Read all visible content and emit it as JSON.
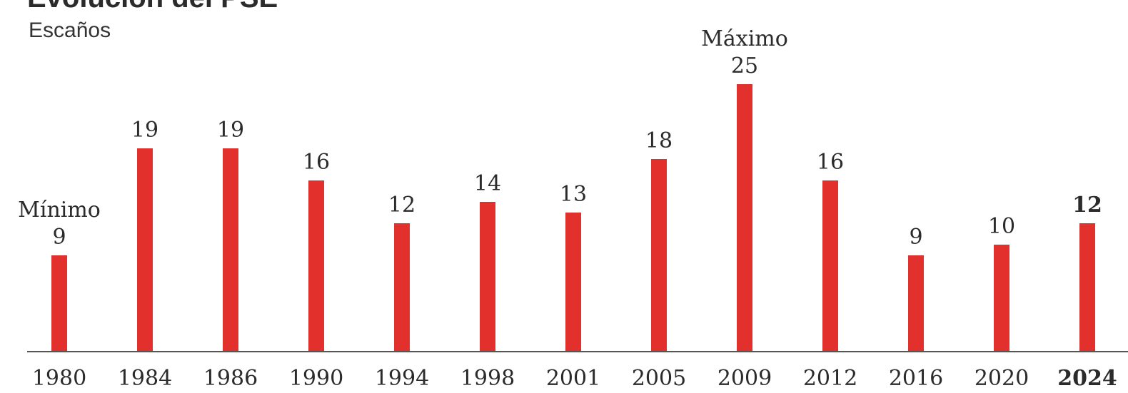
{
  "chart_data": {
    "type": "bar",
    "title": "Evolución del PSE",
    "ylabel": "Escaños",
    "xlabel": "",
    "categories": [
      "1980",
      "1984",
      "1986",
      "1990",
      "1994",
      "1998",
      "2001",
      "2005",
      "2009",
      "2012",
      "2016",
      "2020",
      "2024"
    ],
    "values": [
      9,
      19,
      19,
      16,
      12,
      14,
      13,
      18,
      25,
      16,
      9,
      10,
      12
    ],
    "ylim": [
      0,
      25
    ],
    "highlight_category": "2024",
    "annotations": [
      {
        "category": "1980",
        "text": "Mínimo"
      },
      {
        "category": "2009",
        "text": "Máximo"
      }
    ],
    "bar_color": "#e2302c",
    "grid": false,
    "legend": "none"
  }
}
